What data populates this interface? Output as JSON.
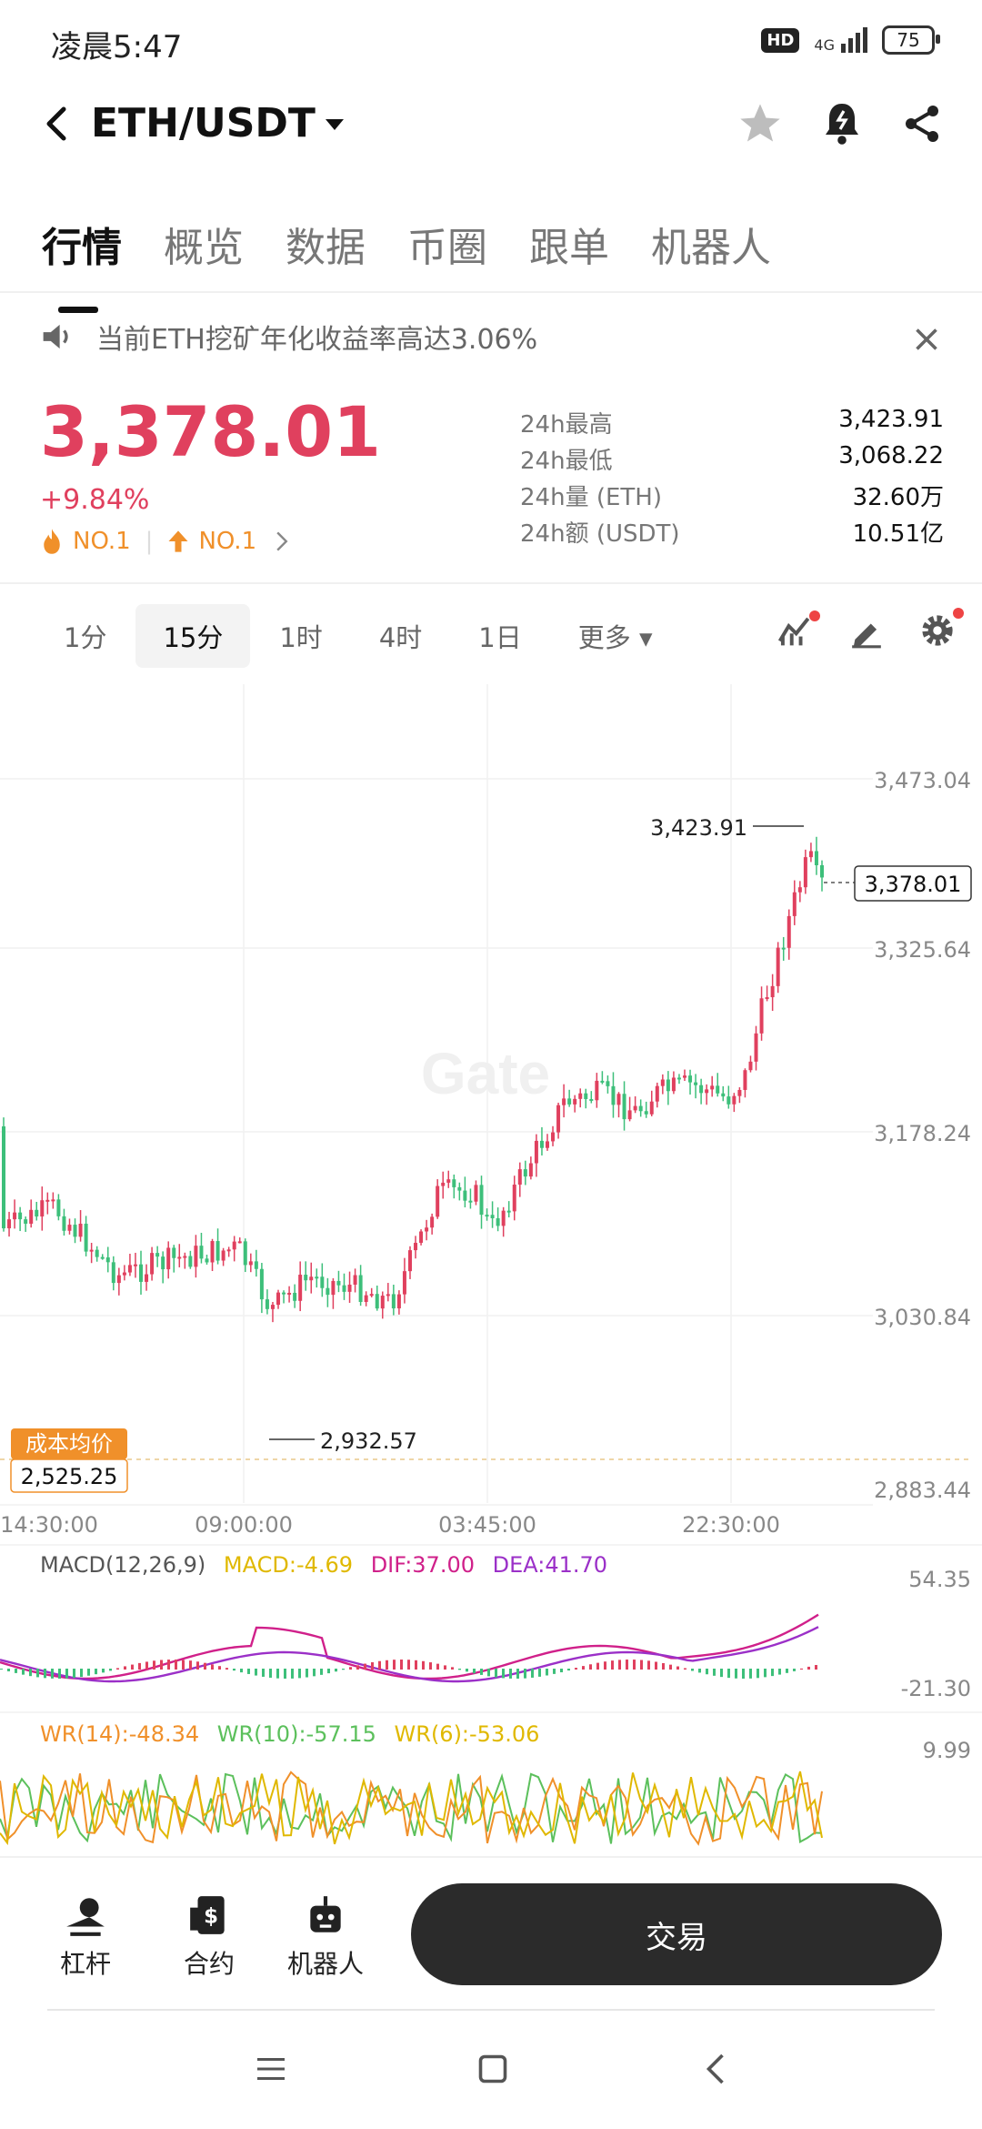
{
  "status": {
    "time": "凌晨5:47",
    "hd": "HD",
    "network": "4G",
    "battery": "75"
  },
  "header": {
    "pair": "ETH/USDT"
  },
  "tabs": [
    "行情",
    "概览",
    "数据",
    "币圈",
    "跟单",
    "机器人"
  ],
  "notice": {
    "text": "当前ETH挖矿年化收益率高达3.06%"
  },
  "ticker": {
    "price": "3,378.01",
    "change": "+9.84%",
    "rank1": "NO.1",
    "rank2": "NO.1",
    "stats": [
      {
        "label": "24h最高",
        "value": "3,423.91"
      },
      {
        "label": "24h最低",
        "value": "3,068.22"
      },
      {
        "label": "24h量 (ETH)",
        "value": "32.60万"
      },
      {
        "label": "24h额 (USDT)",
        "value": "10.51亿"
      }
    ]
  },
  "intervals": [
    "1分",
    "15分",
    "1时",
    "4时",
    "1日",
    "更多"
  ],
  "chart": {
    "watermark": "Gate",
    "price_axis": [
      "3,473.04",
      "3,325.64",
      "3,178.24",
      "3,030.84",
      "2,883.44"
    ],
    "time_axis": [
      "14:30:00",
      "09:00:00",
      "03:45:00",
      "22:30:00"
    ],
    "high_label": "3,423.91",
    "low_label": "2,932.57",
    "last_price": "3,378.01",
    "cost_label": "成本均价",
    "cost_value": "2,525.25",
    "colors": {
      "up": "#e0405e",
      "down": "#3dbf7a"
    }
  },
  "chart_data": {
    "type": "candlestick",
    "ylim": [
      2883.44,
      3473.04
    ],
    "high": 3423.91,
    "low": 2932.57,
    "last": 3378.01
  },
  "macd": {
    "title": "MACD(12,26,9)",
    "macd": "MACD:-4.69",
    "dif": "DIF:37.00",
    "dea": "DEA:41.70",
    "top": "54.35",
    "bottom": "-21.30"
  },
  "wr": {
    "wr14": "WR(14):-48.34",
    "wr10": "WR(10):-57.15",
    "wr6": "WR(6):-53.06",
    "top": "9.99"
  },
  "bottom": {
    "lever": "杠杆",
    "contract": "合约",
    "robot": "机器人",
    "trade": "交易"
  }
}
